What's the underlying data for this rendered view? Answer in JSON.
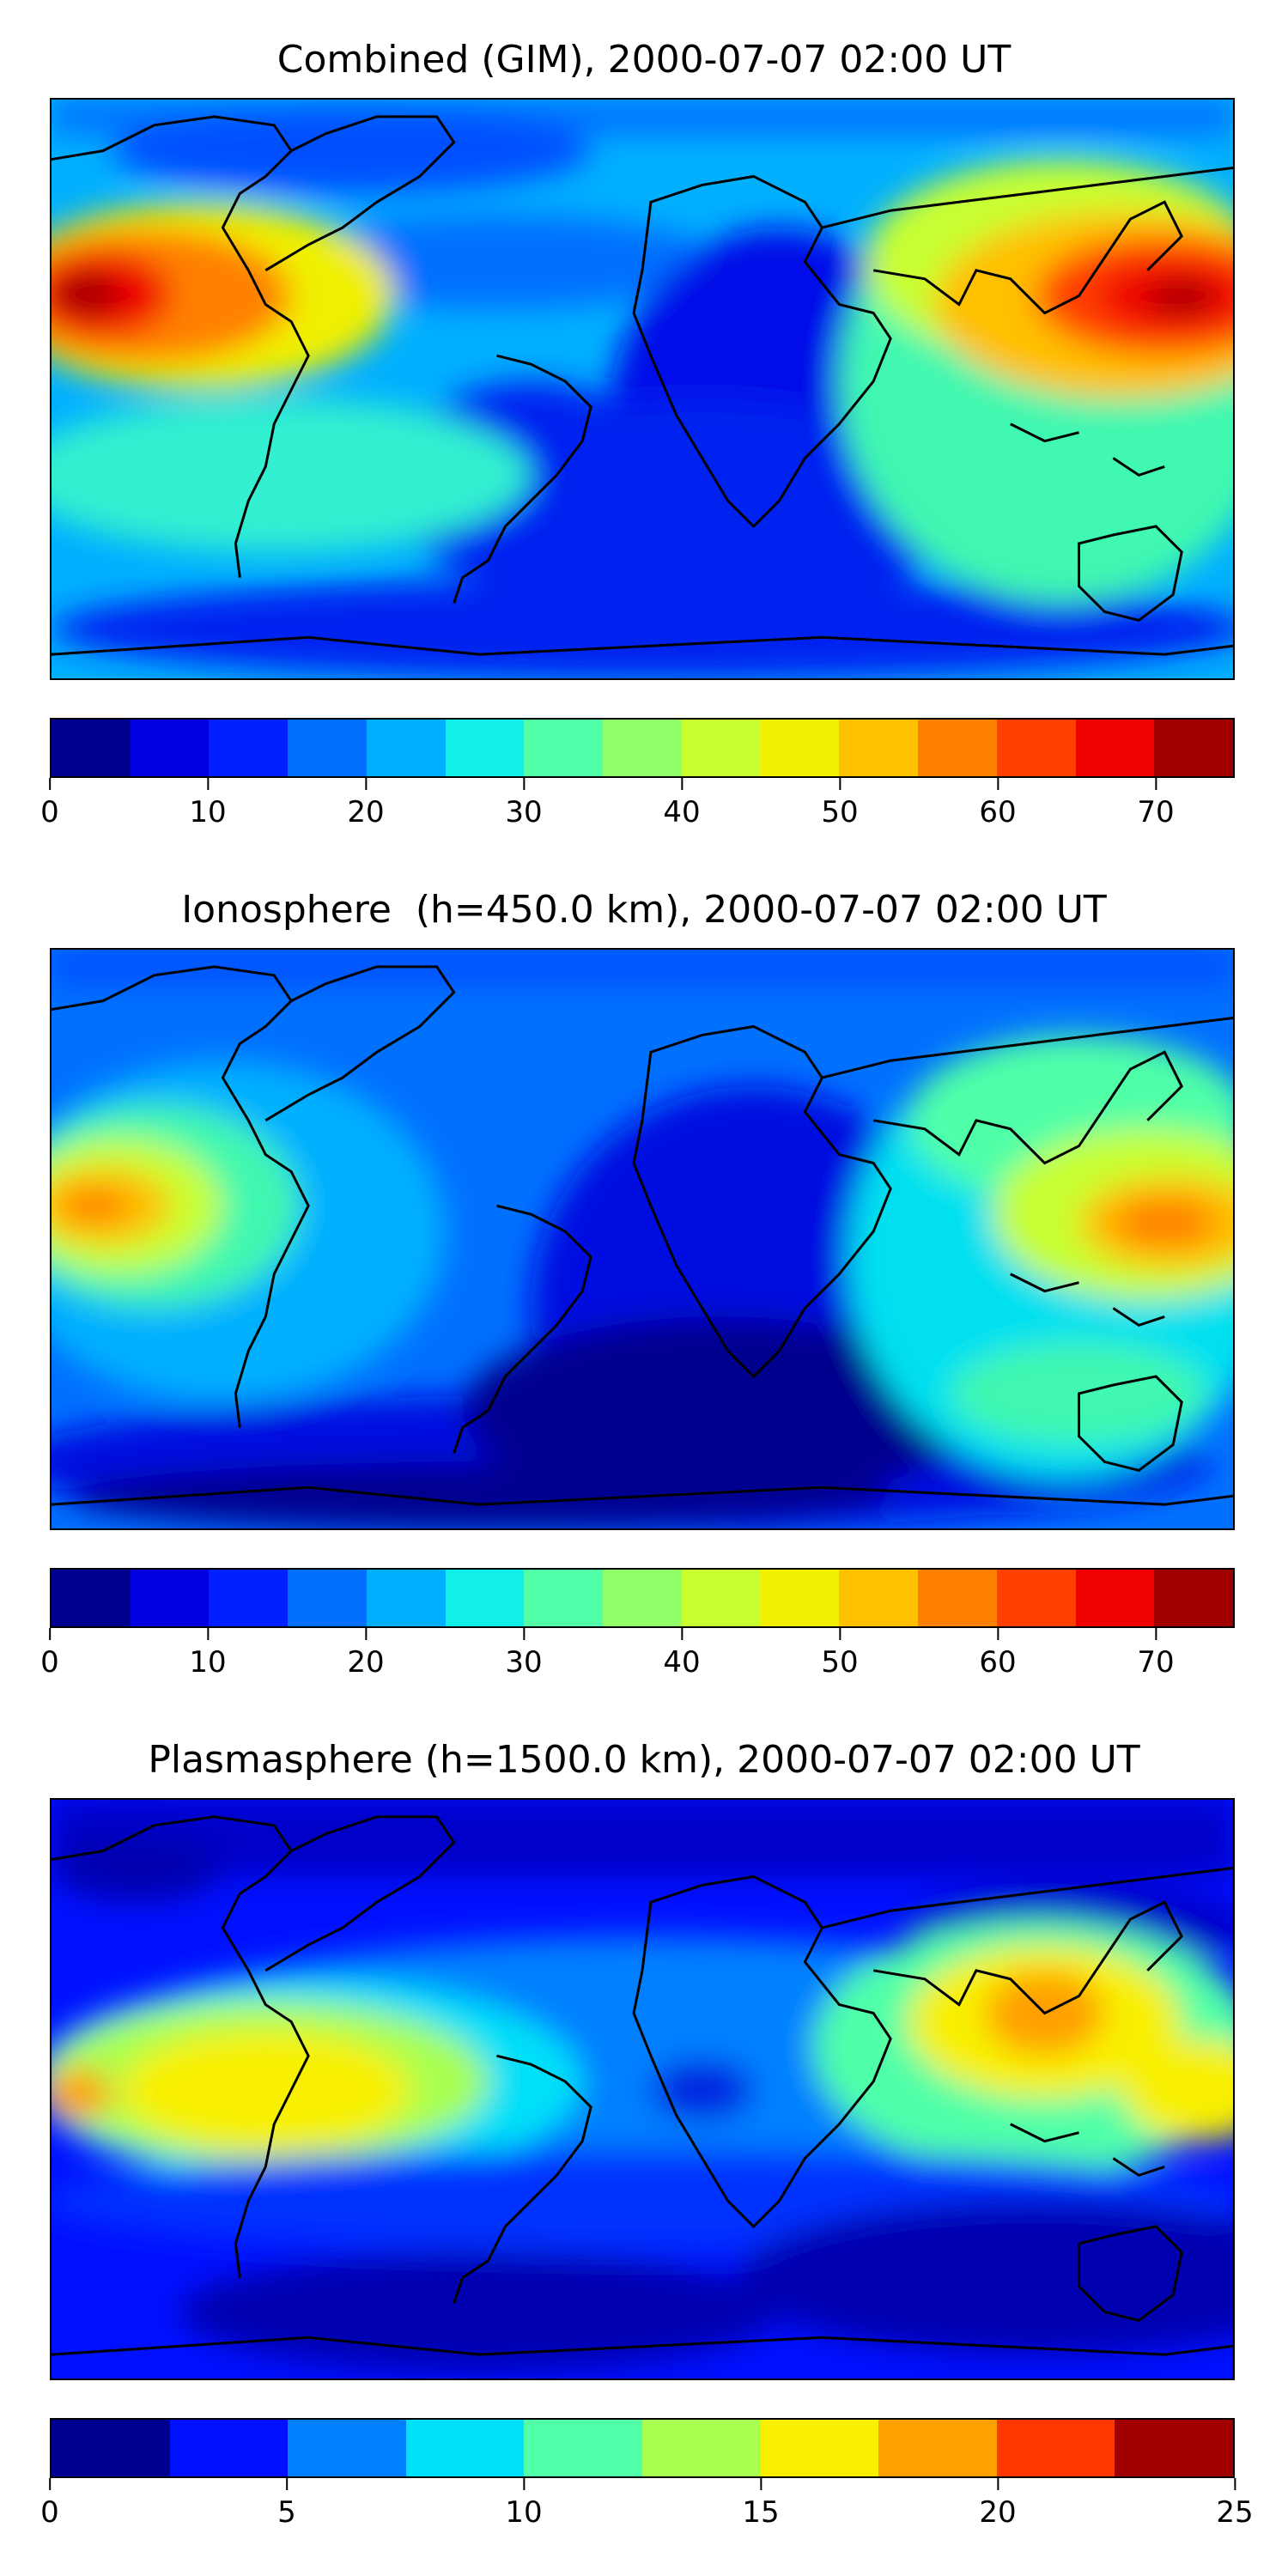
{
  "panels": [
    {
      "title": "Combined (GIM), 2000-07-07 02:00 UT",
      "colorbar": {
        "colors": [
          "#00008f",
          "#0000e0",
          "#0020ff",
          "#0070ff",
          "#00b0ff",
          "#10f0e8",
          "#50ffa8",
          "#90ff68",
          "#c8ff30",
          "#f0f000",
          "#ffc000",
          "#ff8000",
          "#ff4000",
          "#f00000",
          "#a00000"
        ],
        "ticks": [
          "0",
          "10",
          "20",
          "30",
          "40",
          "50",
          "60",
          "70"
        ],
        "tick_values": [
          0,
          10,
          20,
          30,
          40,
          50,
          60,
          70
        ],
        "range": [
          0,
          75
        ]
      }
    },
    {
      "title": "Ionosphere  (h=450.0 km), 2000-07-07 02:00 UT",
      "colorbar": {
        "colors": [
          "#00008f",
          "#0000e0",
          "#0020ff",
          "#0070ff",
          "#00b0ff",
          "#10f0e8",
          "#50ffa8",
          "#90ff68",
          "#c8ff30",
          "#f0f000",
          "#ffc000",
          "#ff8000",
          "#ff4000",
          "#f00000",
          "#a00000"
        ],
        "ticks": [
          "0",
          "10",
          "20",
          "30",
          "40",
          "50",
          "60",
          "70"
        ],
        "tick_values": [
          0,
          10,
          20,
          30,
          40,
          50,
          60,
          70
        ],
        "range": [
          0,
          75
        ]
      }
    },
    {
      "title": "Plasmasphere (h=1500.0 km), 2000-07-07 02:00 UT",
      "colorbar": {
        "colors": [
          "#00008f",
          "#0010ff",
          "#0080ff",
          "#00e0f8",
          "#50ffa8",
          "#a8ff50",
          "#f8f000",
          "#ffa000",
          "#ff3800",
          "#a00000"
        ],
        "ticks": [
          "0",
          "5",
          "10",
          "15",
          "20",
          "25"
        ],
        "tick_values": [
          0,
          5,
          10,
          15,
          20,
          25
        ],
        "range": [
          0,
          25
        ]
      }
    }
  ]
}
